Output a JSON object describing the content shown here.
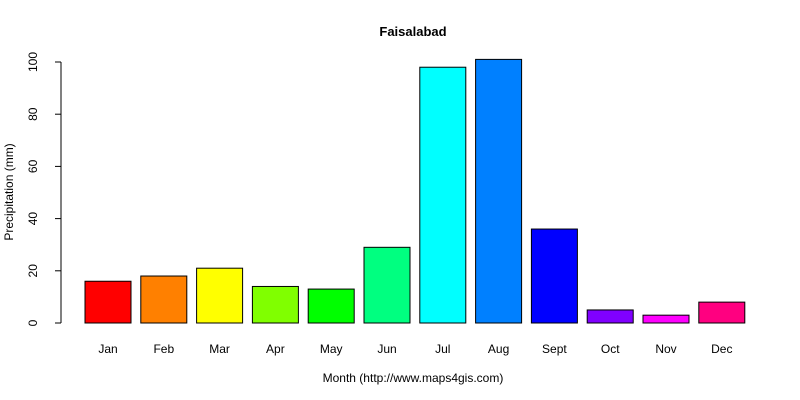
{
  "chart_data": {
    "type": "bar",
    "title": "Faisalabad",
    "xlabel": "Month (http://www.maps4gis.com)",
    "ylabel": "Precipitation (mm)",
    "ylim": [
      0,
      100
    ],
    "yticks": [
      0,
      20,
      40,
      60,
      80,
      100
    ],
    "grid": false,
    "categories": [
      "Jan",
      "Feb",
      "Mar",
      "Apr",
      "May",
      "Jun",
      "Jul",
      "Aug",
      "Sept",
      "Oct",
      "Nov",
      "Dec"
    ],
    "values": [
      16,
      18,
      21,
      14,
      13,
      29,
      98,
      101,
      36,
      5,
      3,
      8
    ],
    "colors": [
      "#ff0000",
      "#ff8000",
      "#ffff00",
      "#80ff00",
      "#00ff00",
      "#00ff80",
      "#00ffff",
      "#0080ff",
      "#0000ff",
      "#8000ff",
      "#ff00ff",
      "#ff0080"
    ]
  }
}
